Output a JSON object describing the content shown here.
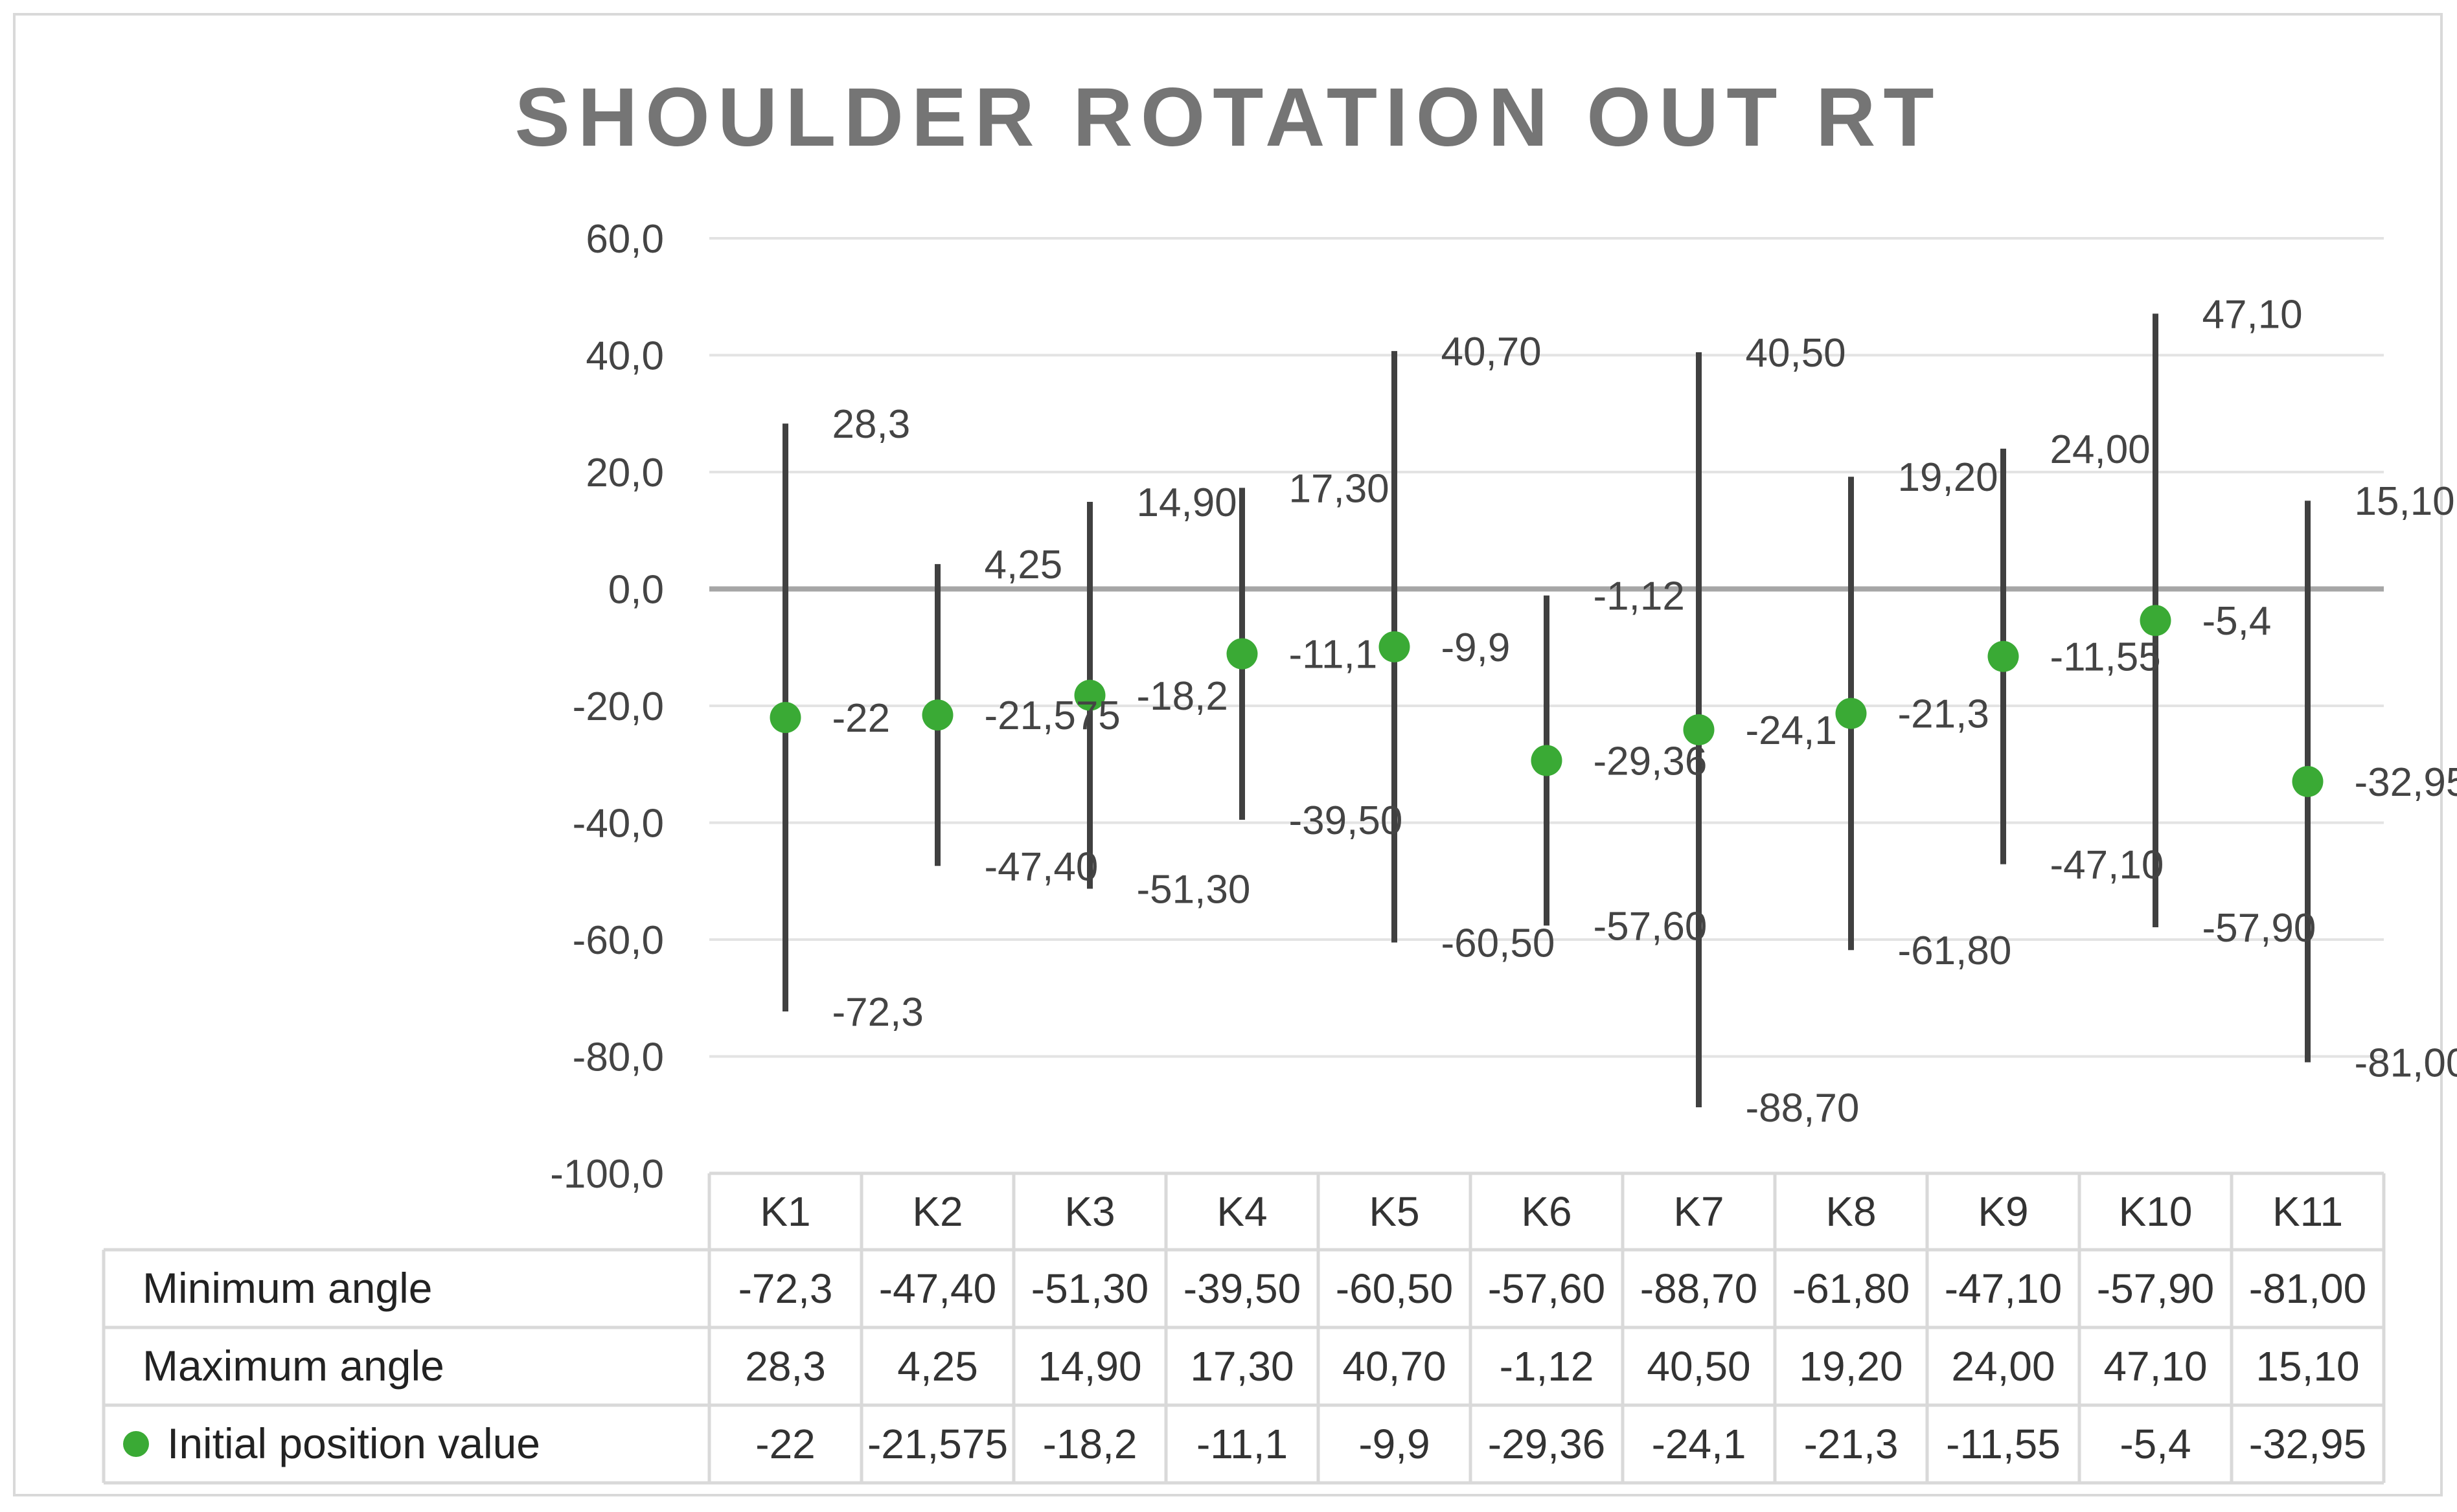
{
  "chart_data": {
    "type": "range-dot",
    "title": "SHOULDER ROTATION OUT RT",
    "categories": [
      "K1",
      "K2",
      "K3",
      "K4",
      "K5",
      "K6",
      "K7",
      "K8",
      "K9",
      "K10",
      "K11"
    ],
    "ylim": [
      -100,
      60
    ],
    "y_ticks": [
      "60,0",
      "40,0",
      "20,0",
      "0,0",
      "-20,0",
      "-40,0",
      "-60,0",
      "-80,0",
      "-100,0"
    ],
    "y_tick_values": [
      60,
      40,
      20,
      0,
      -20,
      -40,
      -60,
      -80,
      -100
    ],
    "grid": true,
    "series": [
      {
        "name": "Minimum angle",
        "values": [
          -72.3,
          -47.4,
          -51.3,
          -39.5,
          -60.5,
          -57.6,
          -88.7,
          -61.8,
          -47.1,
          -57.9,
          -81.0
        ],
        "labels": [
          "-72,3",
          "-47,40",
          "-51,30",
          "-39,50",
          "-60,50",
          "-57,60",
          "-88,70",
          "-61,80",
          "-47,10",
          "-57,90",
          "-81,00"
        ]
      },
      {
        "name": "Maximum angle",
        "values": [
          28.3,
          4.25,
          14.9,
          17.3,
          40.7,
          -1.12,
          40.5,
          19.2,
          24.0,
          47.1,
          15.1
        ],
        "labels": [
          "28,3",
          "4,25",
          "14,90",
          "17,30",
          "40,70",
          "-1,12",
          "40,50",
          "19,20",
          "24,00",
          "47,10",
          "15,10"
        ]
      },
      {
        "name": "Initial position value",
        "values": [
          -22,
          -21.575,
          -18.2,
          -11.1,
          -9.9,
          -29.36,
          -24.1,
          -21.3,
          -11.55,
          -5.4,
          -32.95
        ],
        "labels": [
          "-22",
          "-21,575",
          "-18,2",
          "-11,1",
          "-9,9",
          "-29,36",
          "-24,1",
          "-21,3",
          "-11,55",
          "-5,4",
          "-32,95"
        ],
        "color": "#3aaa35"
      }
    ],
    "line_color": "#404040",
    "zero_line_color": "#a6a6a6",
    "grid_color": "#e3e3e3",
    "table_border_color": "#d9d9d9"
  }
}
